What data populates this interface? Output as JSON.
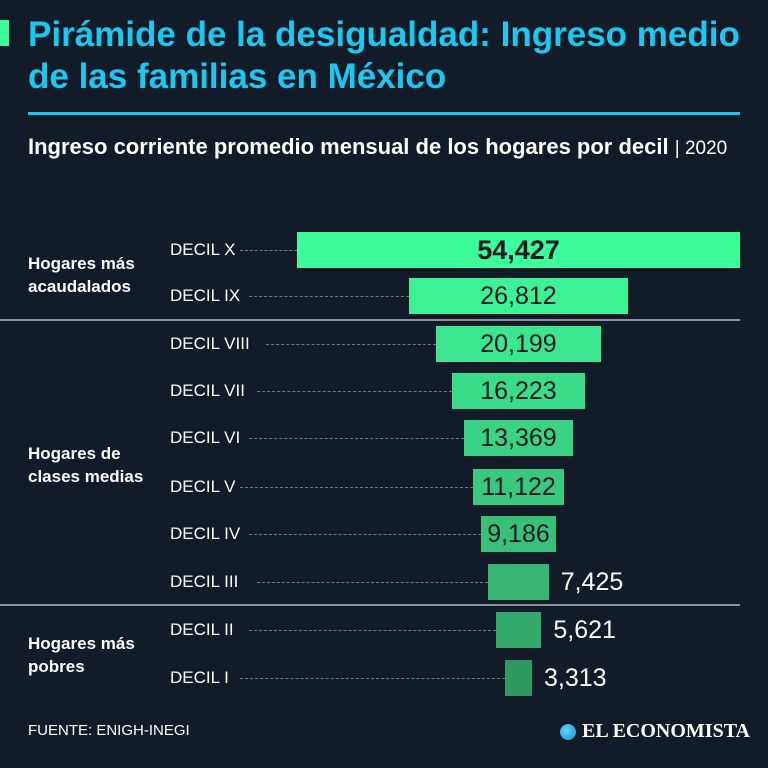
{
  "header": {
    "title": "Pirámide de la desigualdad: Ingreso medio de las familias en México",
    "subtitle": "Ingreso corriente promedio mensual de los hogares por decil",
    "year": "| 2020"
  },
  "groups": [
    {
      "label": "Hogares más acaudalados"
    },
    {
      "label": "Hogares de clases medias"
    },
    {
      "label": "Hogares más pobres"
    }
  ],
  "chart_data": {
    "type": "bar",
    "orientation": "horizontal-centered",
    "title": "Ingreso corriente promedio mensual de los hogares por decil | 2020",
    "categories": [
      "DECIL X",
      "DECIL IX",
      "DECIL VIII",
      "DECIL VII",
      "DECIL VI",
      "DECIL V",
      "DECIL IV",
      "DECIL III",
      "DECIL II",
      "DECIL I"
    ],
    "values": [
      54427,
      26812,
      20199,
      16223,
      13369,
      11122,
      9186,
      7425,
      5621,
      3313
    ],
    "labels": [
      "54,427",
      "26,812",
      "20,199",
      "16,223",
      "13,369",
      "11,122",
      "9,186",
      "7,425",
      "5,621",
      "3,313"
    ],
    "colors": [
      "#3dfc9b",
      "#3df295",
      "#3ce68e",
      "#3bdc89",
      "#3ad283",
      "#39c87d",
      "#38bf78",
      "#36b672",
      "#33aa6b",
      "#2e9a61"
    ]
  },
  "footer": {
    "source": "FUENTE: ENIGH-INEGI",
    "brand": "EL ECONOMISTA"
  }
}
